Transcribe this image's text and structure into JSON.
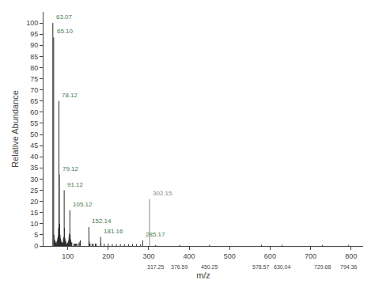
{
  "chart_data": {
    "type": "stem",
    "xlabel": "m/z",
    "ylabel": "Relative Abundance",
    "x": [
      63.07,
      65.1,
      66.0,
      67.0,
      68.0,
      69.0,
      70.0,
      71.0,
      72.0,
      73.0,
      74.0,
      75.0,
      76.0,
      77.0,
      78.12,
      79.12,
      80.0,
      81.0,
      82.0,
      83.0,
      84.0,
      85.0,
      86.0,
      87.0,
      88.0,
      89.0,
      90.0,
      91.12,
      92.0,
      93.0,
      94.0,
      95.0,
      96.0,
      97.0,
      98.0,
      99.0,
      100.0,
      101.0,
      102.0,
      103.0,
      104.0,
      105.12,
      106.0,
      107.0,
      108.0,
      109.0,
      110.0,
      115.0,
      117.0,
      119.0,
      120.0,
      121.0,
      125.0,
      128.0,
      130.0,
      131.0,
      152.14,
      153.0,
      154.0,
      155.0,
      160.0,
      163.0,
      168.0,
      170.0,
      181.16,
      182.0,
      190.0,
      200.0,
      210.0,
      220.0,
      230.0,
      240.0,
      250.0,
      260.0,
      270.0,
      280.0,
      285.17,
      302.15,
      317.25,
      376.59,
      450.25,
      578.57,
      630.04,
      729.68,
      794.36
    ],
    "values": [
      100.0,
      93.5,
      5.0,
      3.0,
      2.5,
      2.0,
      1.5,
      1.5,
      1.0,
      2.0,
      2.5,
      3.5,
      4.5,
      8.0,
      65.0,
      32.0,
      10.0,
      5.0,
      3.5,
      2.5,
      2.0,
      1.5,
      1.5,
      1.5,
      1.5,
      3.0,
      4.0,
      25.0,
      8.0,
      3.5,
      2.5,
      2.0,
      1.5,
      1.0,
      1.0,
      1.0,
      1.5,
      2.0,
      2.5,
      4.0,
      5.5,
      16.0,
      5.0,
      3.0,
      2.0,
      1.5,
      1.5,
      1.0,
      1.0,
      1.0,
      1.0,
      1.0,
      1.0,
      1.5,
      2.0,
      2.5,
      8.5,
      2.0,
      1.0,
      1.0,
      1.0,
      1.0,
      1.0,
      1.0,
      4.0,
      1.5,
      1.0,
      1.0,
      0.8,
      0.8,
      0.8,
      0.8,
      0.8,
      0.8,
      0.8,
      0.8,
      2.5,
      21.0,
      0.5,
      0.5,
      0.5,
      0.5,
      0.5,
      0.5,
      0.5
    ],
    "colors": [
      "#2a2a2a",
      "#2a2a2a",
      "#2a2a2a",
      "#2a2a2a",
      "#2a2a2a",
      "#2a2a2a",
      "#2a2a2a",
      "#2a2a2a",
      "#2a2a2a",
      "#2a2a2a",
      "#2a2a2a",
      "#2a2a2a",
      "#2a2a2a",
      "#2a2a2a",
      "#2a2a2a",
      "#2a2a2a",
      "#2a2a2a",
      "#2a2a2a",
      "#2a2a2a",
      "#2a2a2a",
      "#2a2a2a",
      "#2a2a2a",
      "#2a2a2a",
      "#2a2a2a",
      "#2a2a2a",
      "#2a2a2a",
      "#2a2a2a",
      "#2a2a2a",
      "#2a2a2a",
      "#2a2a2a",
      "#2a2a2a",
      "#2a2a2a",
      "#2a2a2a",
      "#2a2a2a",
      "#2a2a2a",
      "#2a2a2a",
      "#2a2a2a",
      "#2a2a2a",
      "#2a2a2a",
      "#2a2a2a",
      "#2a2a2a",
      "#2a2a2a",
      "#2a2a2a",
      "#2a2a2a",
      "#2a2a2a",
      "#2a2a2a",
      "#2a2a2a",
      "#2a2a2a",
      "#2a2a2a",
      "#2a2a2a",
      "#2a2a2a",
      "#2a2a2a",
      "#2a2a2a",
      "#2a2a2a",
      "#2a2a2a",
      "#2a2a2a",
      "#2a2a2a",
      "#2a2a2a",
      "#2a2a2a",
      "#2a2a2a",
      "#2a2a2a",
      "#2a2a2a",
      "#2a2a2a",
      "#2a2a2a",
      "#2a2a2a",
      "#2a2a2a",
      "#2a2a2a",
      "#2a2a2a",
      "#2a2a2a",
      "#2a2a2a",
      "#2a2a2a",
      "#2a2a2a",
      "#2a2a2a",
      "#2a2a2a",
      "#2a2a2a",
      "#2a2a2a",
      "#2a2a2a",
      "#888888",
      "#2a2a2a",
      "#2a2a2a",
      "#2a2a2a",
      "#2a2a2a",
      "#2a2a2a",
      "#2a2a2a",
      "#2a2a2a"
    ],
    "annotations": [
      {
        "x": 63.07,
        "y": 100.0,
        "text": "63.07",
        "color": "#4a7a4a"
      },
      {
        "x": 65.1,
        "y": 93.5,
        "text": "65.10",
        "color": "#4a7a4a"
      },
      {
        "x": 78.12,
        "y": 65.0,
        "text": "78.12",
        "color": "#4a7a4a"
      },
      {
        "x": 79.12,
        "y": 32.0,
        "text": "79.12",
        "color": "#4a7a4a"
      },
      {
        "x": 91.12,
        "y": 25.0,
        "text": "91.12",
        "color": "#4a7a4a"
      },
      {
        "x": 105.12,
        "y": 16.0,
        "text": "105.12",
        "color": "#4a7a4a"
      },
      {
        "x": 152.14,
        "y": 8.5,
        "text": "152.14",
        "color": "#4a7a4a"
      },
      {
        "x": 181.16,
        "y": 4.0,
        "text": "181.16",
        "color": "#4a7a4a"
      },
      {
        "x": 285.17,
        "y": 2.5,
        "text": "285.17",
        "color": "#4a7a4a"
      },
      {
        "x": 302.15,
        "y": 21.0,
        "text": "302.15",
        "color": "#888888"
      }
    ],
    "axis_annotations": [
      {
        "x": 317.25,
        "text": "317.25"
      },
      {
        "x": 376.59,
        "text": "376.59"
      },
      {
        "x": 450.25,
        "text": "450.25"
      },
      {
        "x": 578.57,
        "text": "578.57"
      },
      {
        "x": 630.04,
        "text": "630.04"
      },
      {
        "x": 729.68,
        "text": "729.68"
      },
      {
        "x": 794.36,
        "text": "794.36"
      }
    ],
    "xlim": [
      40,
      830
    ],
    "ylim": [
      0,
      105
    ],
    "xticks": [
      100,
      200,
      300,
      400,
      500,
      600,
      700,
      800
    ],
    "yticks": [
      0,
      5,
      10,
      15,
      20,
      25,
      30,
      35,
      40,
      45,
      50,
      55,
      60,
      65,
      70,
      75,
      80,
      85,
      90,
      95,
      100
    ],
    "grid": false
  }
}
